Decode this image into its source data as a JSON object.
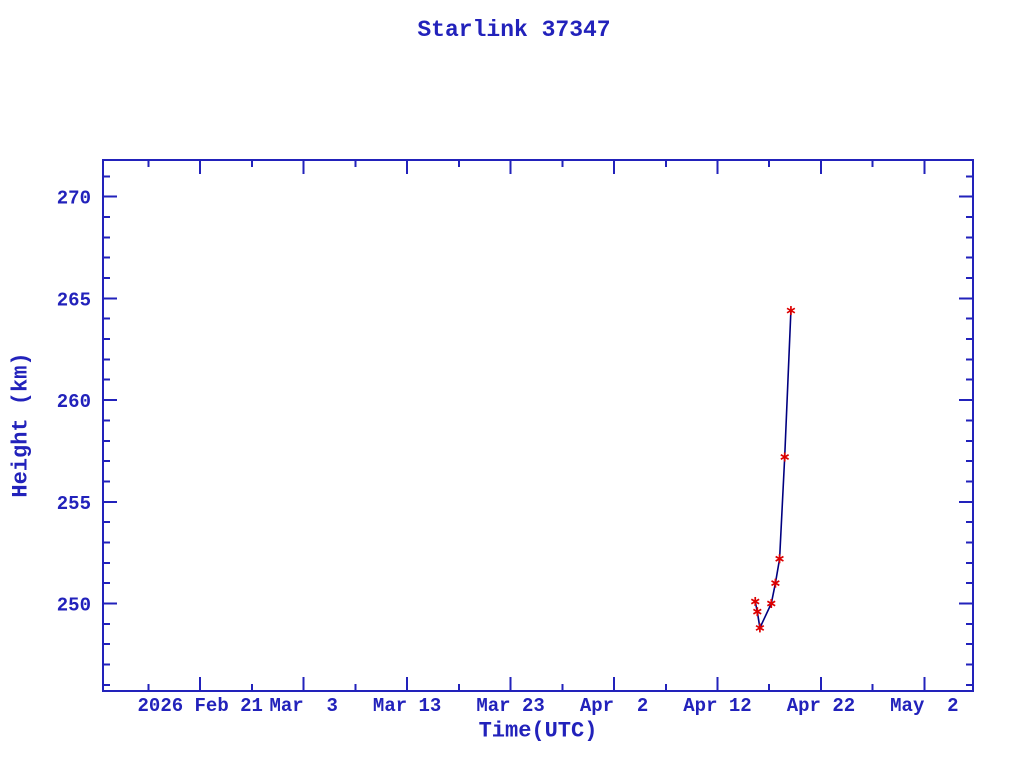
{
  "chart_data": {
    "type": "line",
    "title": "Starlink 37347",
    "xlabel": "Time(UTC)",
    "ylabel": "Height (km)",
    "grid": false,
    "legend": "none",
    "x_axis": {
      "unit": "days since 2026 Feb 21",
      "lim": [
        -9.4,
        74.7
      ],
      "minor_step": 5,
      "major_ticks": [
        {
          "pos": 0,
          "label": "2026 Feb 21"
        },
        {
          "pos": 10,
          "label": "Mar  3"
        },
        {
          "pos": 20,
          "label": "Mar 13"
        },
        {
          "pos": 30,
          "label": "Mar 23"
        },
        {
          "pos": 40,
          "label": "Apr  2"
        },
        {
          "pos": 50,
          "label": "Apr 12"
        },
        {
          "pos": 60,
          "label": "Apr 22"
        },
        {
          "pos": 70,
          "label": "May  2"
        }
      ]
    },
    "y_axis": {
      "unit": "km",
      "lim": [
        245.7,
        271.8
      ],
      "minor_step": 1,
      "major_ticks": [
        250,
        255,
        260,
        265,
        270
      ]
    },
    "series": [
      {
        "name": "Starlink 37347 orbital height",
        "marker": "asterisk",
        "points": [
          {
            "day": 53.65,
            "date": "Apr 15.7",
            "height_km": 250.1
          },
          {
            "day": 53.85,
            "date": "Apr 15.9",
            "height_km": 249.6
          },
          {
            "day": 54.1,
            "date": "Apr 16.1",
            "height_km": 248.8
          },
          {
            "day": 55.2,
            "date": "Apr 17.2",
            "height_km": 250.0
          },
          {
            "day": 55.6,
            "date": "Apr 17.6",
            "height_km": 251.0
          },
          {
            "day": 56.0,
            "date": "Apr 18.0",
            "height_km": 252.2
          },
          {
            "day": 56.5,
            "date": "Apr 18.5",
            "height_km": 257.2
          },
          {
            "day": 57.1,
            "date": "Apr 19.1",
            "height_km": 264.4
          }
        ]
      }
    ],
    "colors": {
      "axis_and_text": "#2222bb",
      "data_line": "#000080",
      "marker": "#dd0000",
      "background": "#ffffff"
    }
  }
}
